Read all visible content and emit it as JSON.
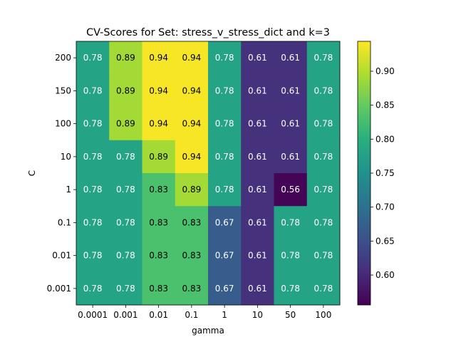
{
  "chart_data": {
    "type": "heatmap",
    "title": "CV-Scores for Set: stress_v_stress_dict and k=3",
    "xlabel": "gamma",
    "ylabel": "C",
    "x_categories": [
      "0.0001",
      "0.001",
      "0.01",
      "0.1",
      "1",
      "10",
      "50",
      "100"
    ],
    "y_categories": [
      "200",
      "150",
      "100",
      "10",
      "1",
      "0.1",
      "0.01",
      "0.001"
    ],
    "values": [
      [
        0.78,
        0.89,
        0.94,
        0.94,
        0.78,
        0.61,
        0.61,
        0.78
      ],
      [
        0.78,
        0.89,
        0.94,
        0.94,
        0.78,
        0.61,
        0.61,
        0.78
      ],
      [
        0.78,
        0.89,
        0.94,
        0.94,
        0.78,
        0.61,
        0.61,
        0.78
      ],
      [
        0.78,
        0.78,
        0.89,
        0.94,
        0.78,
        0.61,
        0.61,
        0.78
      ],
      [
        0.78,
        0.78,
        0.83,
        0.89,
        0.78,
        0.61,
        0.56,
        0.78
      ],
      [
        0.78,
        0.78,
        0.83,
        0.83,
        0.67,
        0.61,
        0.78,
        0.78
      ],
      [
        0.78,
        0.78,
        0.83,
        0.83,
        0.67,
        0.61,
        0.78,
        0.78
      ],
      [
        0.78,
        0.78,
        0.83,
        0.83,
        0.67,
        0.61,
        0.78,
        0.78
      ]
    ],
    "colormap": "viridis",
    "color_range": [
      0.556,
      0.944
    ],
    "colorbar_ticks": [
      "0.60",
      "0.65",
      "0.70",
      "0.75",
      "0.80",
      "0.85",
      "0.90"
    ],
    "colorbar_position": "right",
    "grid": false
  }
}
